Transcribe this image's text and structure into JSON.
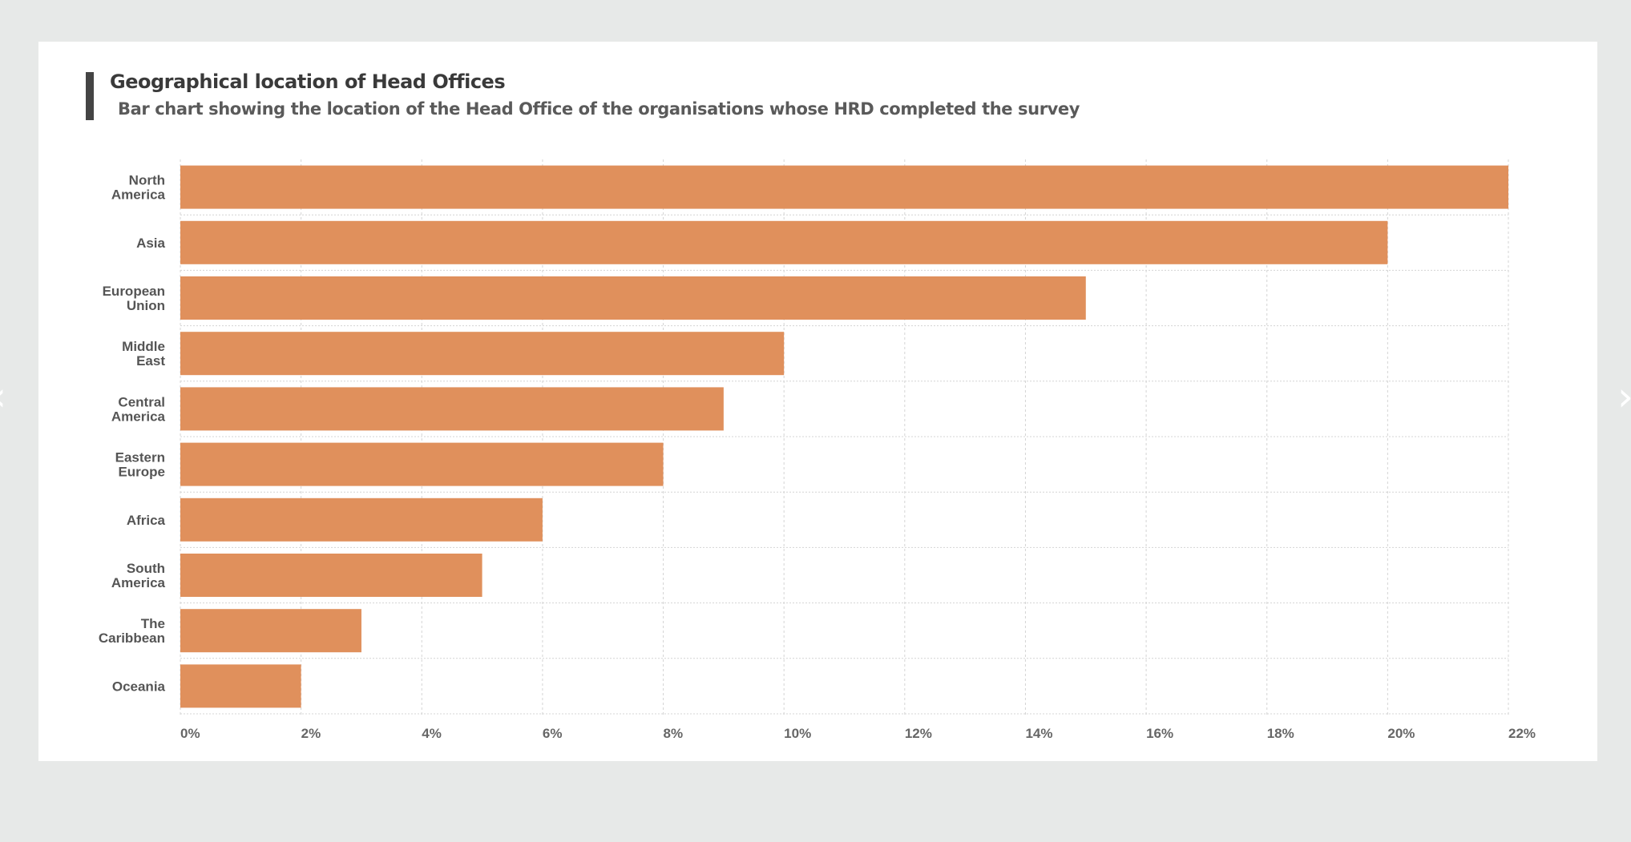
{
  "header": {
    "title": "Geographical location of Head Offices",
    "subtitle": "Bar chart showing the location of the Head Office of the organisations whose HRD completed the survey"
  },
  "navigation": {
    "prev_icon": "chevron-left-icon",
    "next_icon": "chevron-right-icon"
  },
  "chart_data": {
    "type": "bar",
    "orientation": "horizontal",
    "title": "Geographical location of Head Offices",
    "subtitle": "Bar chart showing the location of the Head Office of the organisations whose HRD completed the survey",
    "categories": [
      [
        "North",
        "America"
      ],
      [
        "Asia"
      ],
      [
        "European",
        "Union"
      ],
      [
        "Middle",
        "East"
      ],
      [
        "Central",
        "America"
      ],
      [
        "Eastern",
        "Europe"
      ],
      [
        "Africa"
      ],
      [
        "South",
        "America"
      ],
      [
        "The",
        "Caribbean"
      ],
      [
        "Oceania"
      ]
    ],
    "values": [
      22,
      20,
      15,
      10,
      9,
      8,
      6,
      5,
      3,
      2
    ],
    "xlim": [
      0,
      22
    ],
    "xticks": [
      "0%",
      "2%",
      "4%",
      "6%",
      "8%",
      "10%",
      "12%",
      "14%",
      "16%",
      "18%",
      "20%",
      "22%"
    ],
    "grid": true,
    "bar_color": "#e0905c"
  }
}
